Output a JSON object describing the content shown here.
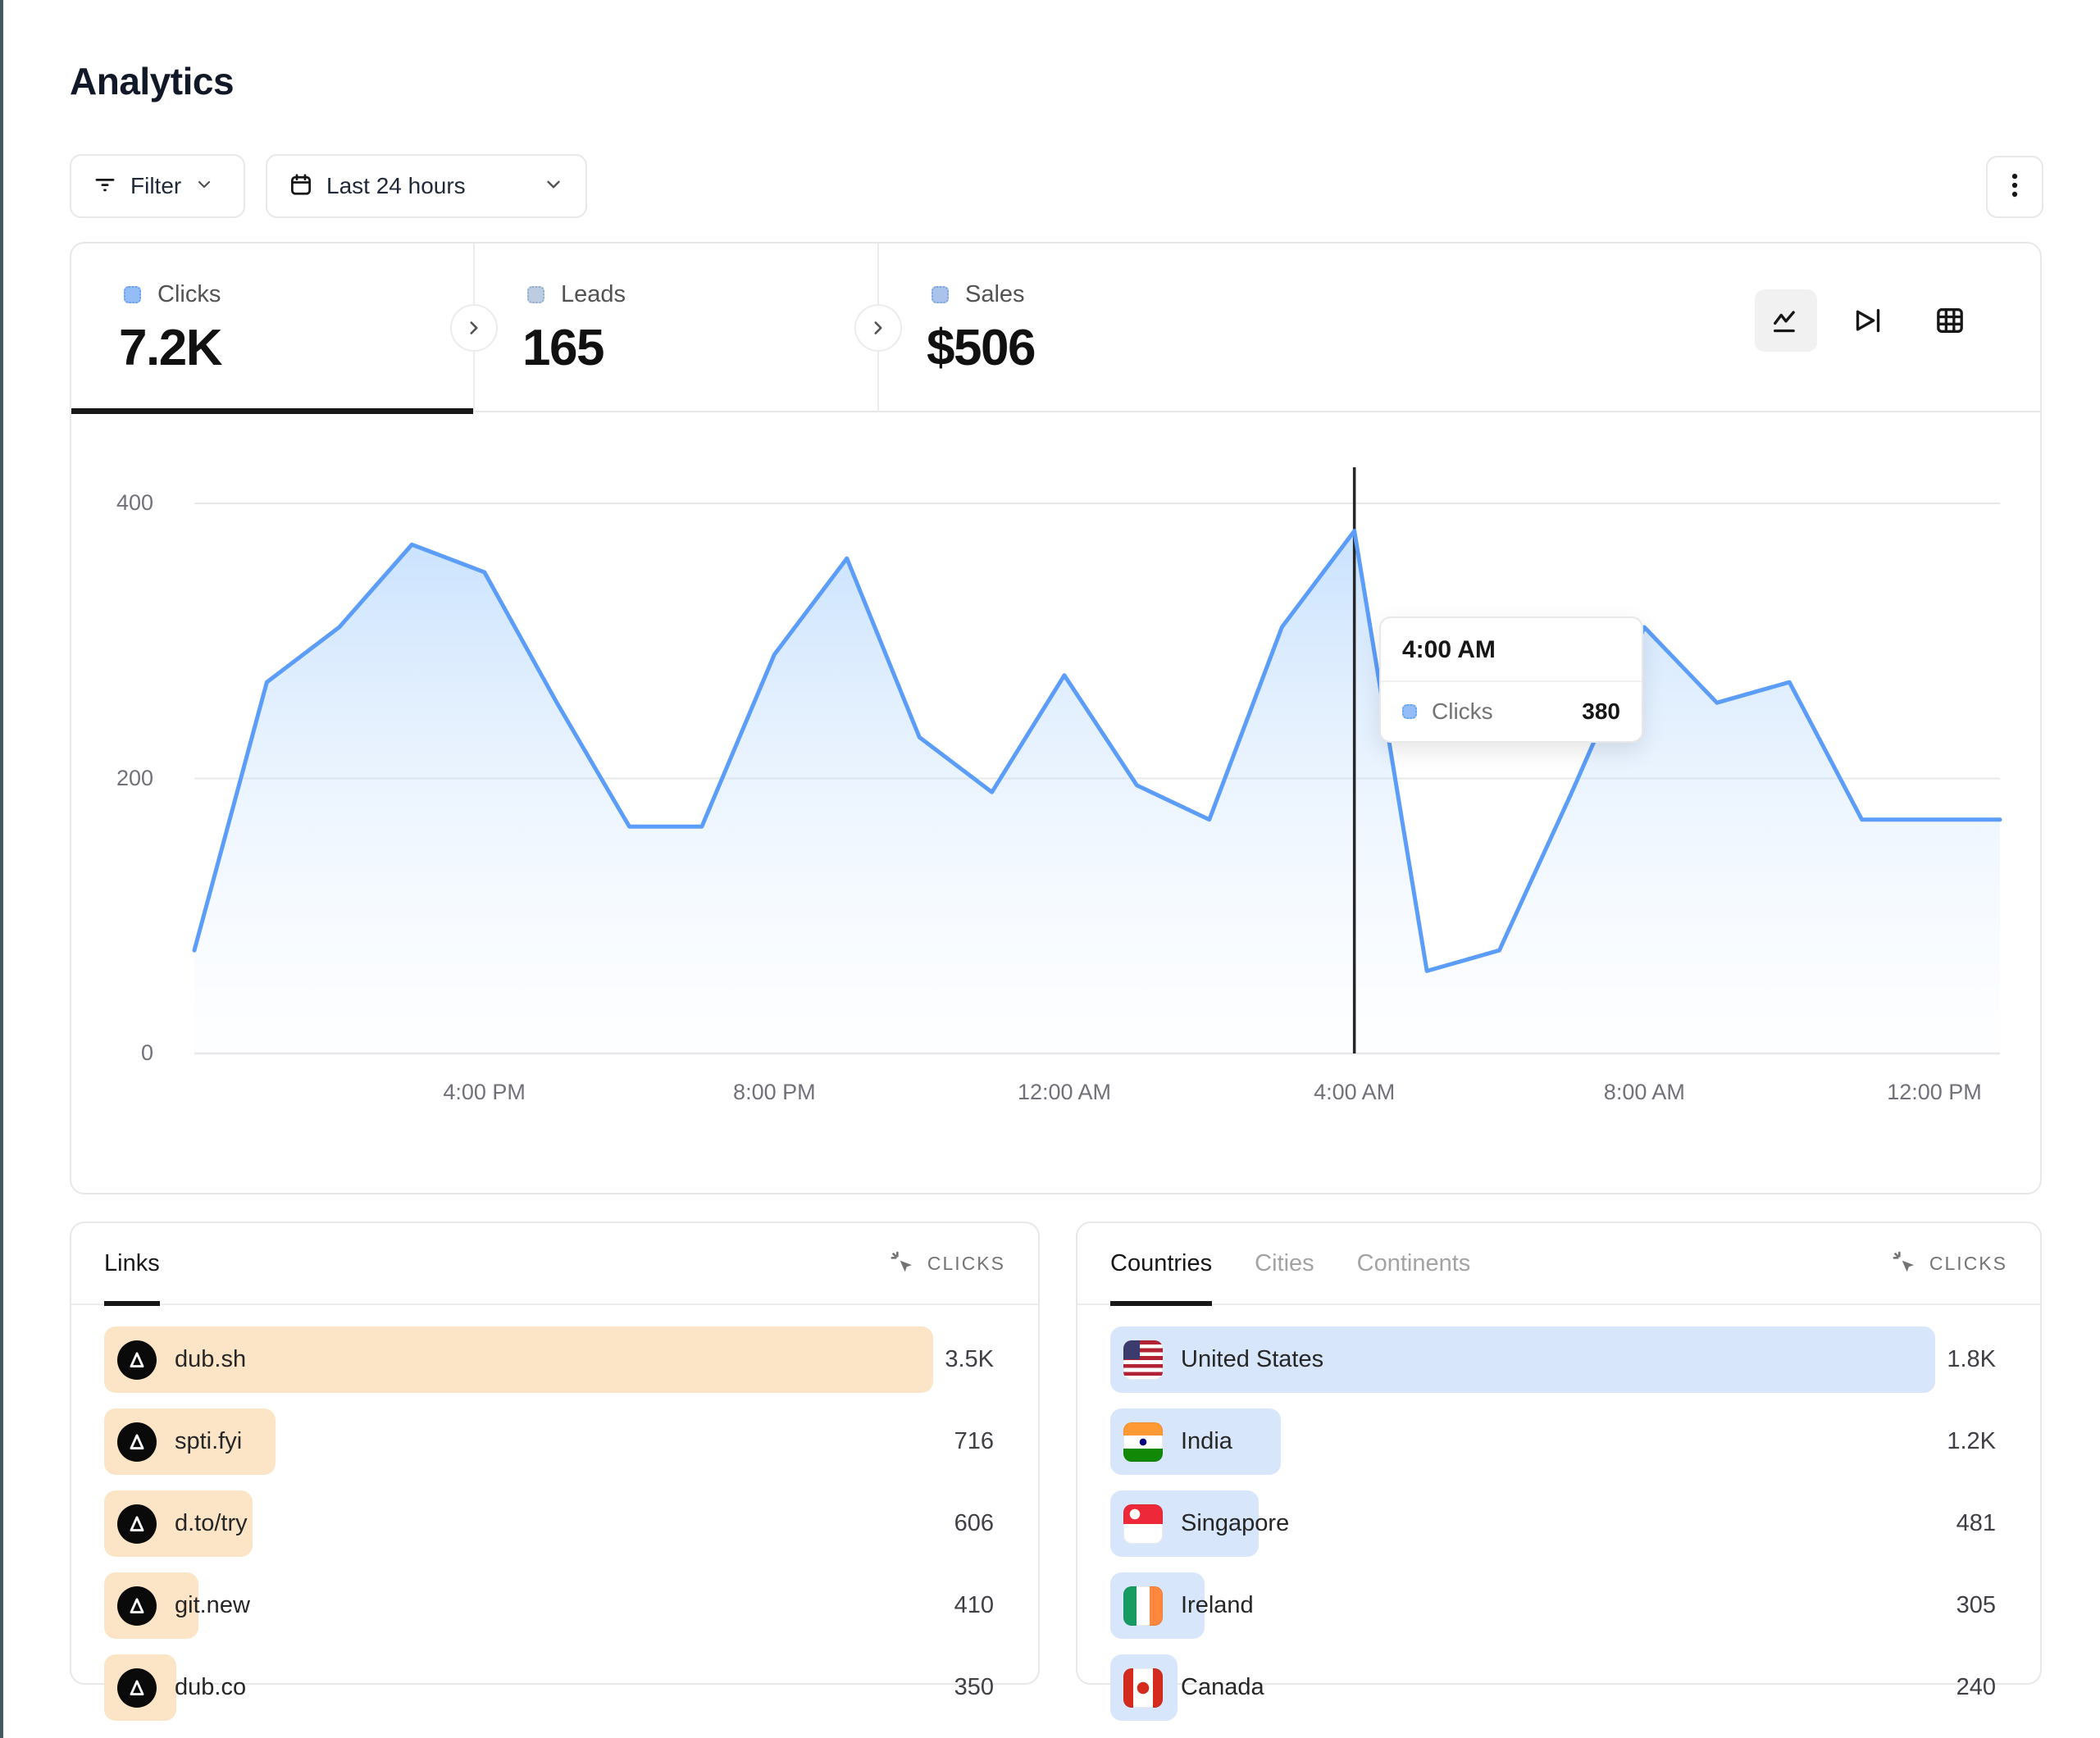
{
  "page": {
    "title": "Analytics"
  },
  "toolbar": {
    "filter_label": "Filter",
    "date_range_label": "Last 24 hours",
    "icons": [
      "filter-icon",
      "calendar-icon",
      "chevron-down-icon",
      "kebab-menu-icon"
    ]
  },
  "metrics": {
    "tabs": [
      {
        "label": "Clicks",
        "value": "7.2K",
        "active": true
      },
      {
        "label": "Leads",
        "value": "165",
        "active": false
      },
      {
        "label": "Sales",
        "value": "$506",
        "active": false
      }
    ]
  },
  "chart_toolbar": {
    "icons": [
      "line-chart-icon",
      "funnel-chart-icon",
      "table-view-icon"
    ],
    "selected": "line-chart-icon"
  },
  "chart_data": {
    "type": "area",
    "title": "Clicks over the last 24 hours",
    "legend": "Clicks",
    "x": [
      "12 PM",
      "1 PM",
      "2 PM",
      "3 PM",
      "4 PM",
      "5 PM",
      "6 PM",
      "7 PM",
      "8 PM",
      "9 PM",
      "10 PM",
      "11 PM",
      "12 AM",
      "1 AM",
      "2 AM",
      "3 AM",
      "4 AM",
      "5 AM",
      "6 AM",
      "7 AM",
      "8 AM",
      "9 AM",
      "10 AM",
      "11 AM",
      "12 PM"
    ],
    "values": [
      75,
      270,
      310,
      370,
      350,
      255,
      165,
      165,
      290,
      360,
      230,
      190,
      275,
      195,
      170,
      310,
      380,
      60,
      75,
      190,
      310,
      255,
      270,
      170,
      170
    ],
    "x_tick_labels": [
      "4:00 PM",
      "8:00 PM",
      "12:00 AM",
      "4:00 AM",
      "8:00 AM",
      "12:00 PM"
    ],
    "x_tick_indices": [
      4,
      8,
      12,
      16,
      20,
      24
    ],
    "yticks": [
      0,
      200,
      400
    ],
    "ylim": [
      0,
      431
    ],
    "grid": "horizontal",
    "line_color": "#5b9df9",
    "area_top_color": "rgba(148,197,252,0.50)",
    "area_bottom_color": "rgba(224,239,255,0.05)",
    "hover": {
      "x_index": 16,
      "x_label": "4:00 AM",
      "value": 380
    }
  },
  "tooltip": {
    "time": "4:00 AM",
    "series": "Clicks",
    "value": "380"
  },
  "links_panel": {
    "tabs": [
      {
        "label": "Links",
        "active": true
      }
    ],
    "metric_label": "CLICKS",
    "metric_icon": "cursor-click-icon",
    "rows": [
      {
        "label": "dub.sh",
        "value": "3.5K",
        "bar_pct": 92,
        "icon": "dub-logo"
      },
      {
        "label": "spti.fyi",
        "value": "716",
        "bar_pct": 19,
        "icon": "dub-logo"
      },
      {
        "label": "d.to/try",
        "value": "606",
        "bar_pct": 16.5,
        "icon": "dub-logo"
      },
      {
        "label": "git.new",
        "value": "410",
        "bar_pct": 10.5,
        "icon": "dub-logo"
      },
      {
        "label": "dub.co",
        "value": "350",
        "bar_pct": 8,
        "icon": "dub-logo"
      }
    ]
  },
  "countries_panel": {
    "tabs": [
      {
        "label": "Countries",
        "active": true
      },
      {
        "label": "Cities",
        "active": false
      },
      {
        "label": "Continents",
        "active": false
      }
    ],
    "metric_label": "CLICKS",
    "metric_icon": "cursor-click-icon",
    "rows": [
      {
        "label": "United States",
        "value": "1.8K",
        "bar_pct": 92,
        "icon": "us-flag-icon"
      },
      {
        "label": "India",
        "value": "1.2K",
        "bar_pct": 19,
        "icon": "india-flag-icon"
      },
      {
        "label": "Singapore",
        "value": "481",
        "bar_pct": 16.5,
        "icon": "singapore-flag-icon"
      },
      {
        "label": "Ireland",
        "value": "305",
        "bar_pct": 10.5,
        "icon": "ireland-flag-icon"
      },
      {
        "label": "Canada",
        "value": "240",
        "bar_pct": 7.5,
        "icon": "canada-flag-icon"
      }
    ]
  },
  "colors": {
    "accent_blue": "#5b9df9",
    "links_bar": "#fce5c6",
    "countries_bar": "#d7e6fb",
    "border": "#e8e8ea",
    "muted_text": "#737373",
    "edge_strip": "#41585c"
  }
}
